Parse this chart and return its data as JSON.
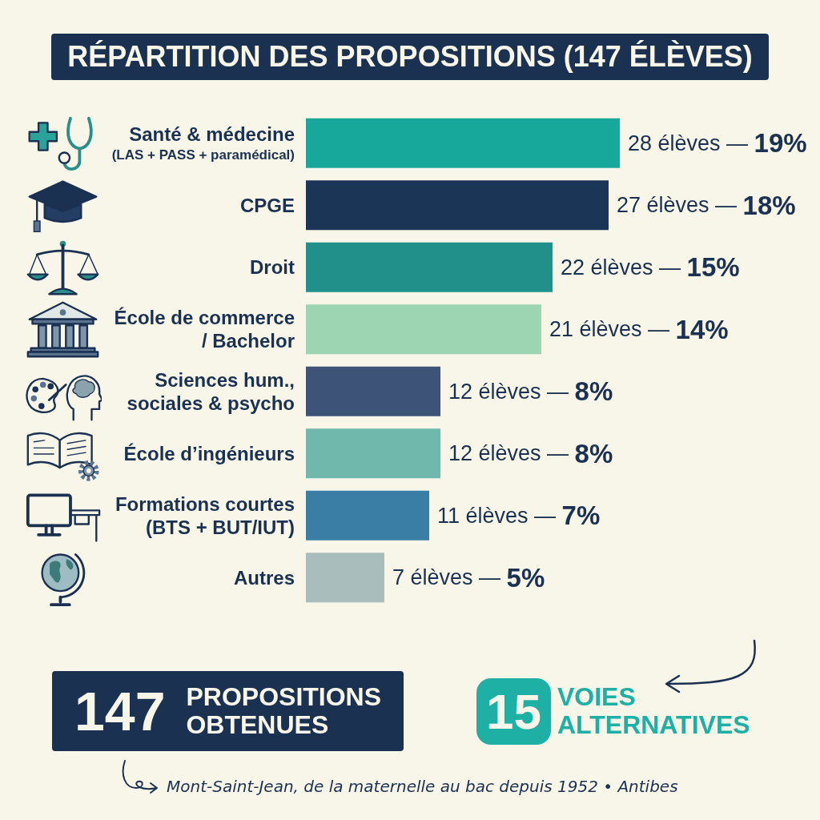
{
  "chart_data": {
    "type": "bar",
    "orientation": "horizontal",
    "title": "RÉPARTITION DES PROPOSITIONS (147 ÉLÈVES)",
    "categories": [
      "Santé & médecine\n(LAS + PASS + paramédical)",
      "CPGE",
      "Droit",
      "École de commerce\n/ Bachelor",
      "Sciences hum.,\nsociales & psycho",
      "École d’ingénieurs",
      "Formations courtes\n(BTS + BUT/IUT)",
      "Autres"
    ],
    "values": [
      28,
      27,
      22,
      21,
      12,
      12,
      11,
      7
    ],
    "colors": [
      "#17a89b",
      "#1b3556",
      "#22908a",
      "#9dd5b2",
      "#3d5478",
      "#6fb8ab",
      "#3a7ea5",
      "#a9bdbc"
    ],
    "value_labels": [
      "28 élèves — 19%",
      "27 élèves — 18%",
      "22 élèves — 15%",
      "21 élèves — 14%",
      "12 élèves — 8%",
      "12 élèves — 8%",
      "11 élèves — 7%",
      "7 élèves — 5%"
    ],
    "annotations": [
      "147 PROPOSITIONS OBTENUES",
      "15 VOIES ALTERNATIVES",
      "Mont-Saint-Jean, de la maternelle au bac depuis 1952 • Antibes"
    ]
  }
}
